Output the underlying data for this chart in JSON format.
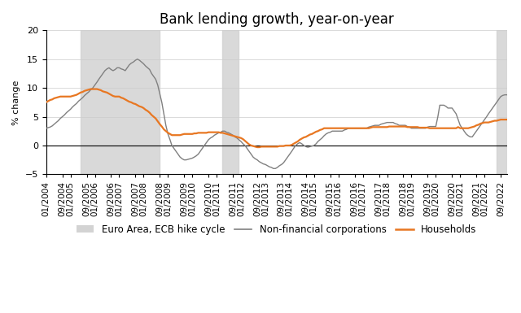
{
  "title": "Bank lending growth, year-on-year",
  "ylabel": "% change",
  "ylim": [
    -5,
    20
  ],
  "yticks": [
    -5,
    0,
    5,
    10,
    15,
    20
  ],
  "shaded_regions": [
    {
      "start": "2005-06-01",
      "end": "2008-09-01"
    },
    {
      "start": "2011-04-01",
      "end": "2011-12-01"
    },
    {
      "start": "2022-07-01",
      "end": "2022-12-01"
    }
  ],
  "nfc_color": "#808080",
  "hh_color": "#E87722",
  "shaded_color": "#d3d3d3",
  "background_color": "#ffffff",
  "title_fontsize": 12,
  "axis_fontsize": 7.5,
  "legend_fontsize": 8.5,
  "nfc_data": {
    "dates": [
      "2004-01-01",
      "2004-02-01",
      "2004-03-01",
      "2004-04-01",
      "2004-05-01",
      "2004-06-01",
      "2004-07-01",
      "2004-08-01",
      "2004-09-01",
      "2004-10-01",
      "2004-11-01",
      "2004-12-01",
      "2005-01-01",
      "2005-02-01",
      "2005-03-01",
      "2005-04-01",
      "2005-05-01",
      "2005-06-01",
      "2005-07-01",
      "2005-08-01",
      "2005-09-01",
      "2005-10-01",
      "2005-11-01",
      "2005-12-01",
      "2006-01-01",
      "2006-02-01",
      "2006-03-01",
      "2006-04-01",
      "2006-05-01",
      "2006-06-01",
      "2006-07-01",
      "2006-08-01",
      "2006-09-01",
      "2006-10-01",
      "2006-11-01",
      "2006-12-01",
      "2007-01-01",
      "2007-02-01",
      "2007-03-01",
      "2007-04-01",
      "2007-05-01",
      "2007-06-01",
      "2007-07-01",
      "2007-08-01",
      "2007-09-01",
      "2007-10-01",
      "2007-11-01",
      "2007-12-01",
      "2008-01-01",
      "2008-02-01",
      "2008-03-01",
      "2008-04-01",
      "2008-05-01",
      "2008-06-01",
      "2008-07-01",
      "2008-08-01",
      "2008-09-01",
      "2008-10-01",
      "2008-11-01",
      "2008-12-01",
      "2009-01-01",
      "2009-02-01",
      "2009-03-01",
      "2009-04-01",
      "2009-05-01",
      "2009-06-01",
      "2009-07-01",
      "2009-08-01",
      "2009-09-01",
      "2009-10-01",
      "2009-11-01",
      "2009-12-01",
      "2010-01-01",
      "2010-02-01",
      "2010-03-01",
      "2010-04-01",
      "2010-05-01",
      "2010-06-01",
      "2010-07-01",
      "2010-08-01",
      "2010-09-01",
      "2010-10-01",
      "2010-11-01",
      "2010-12-01",
      "2011-01-01",
      "2011-02-01",
      "2011-03-01",
      "2011-04-01",
      "2011-05-01",
      "2011-06-01",
      "2011-07-01",
      "2011-08-01",
      "2011-09-01",
      "2011-10-01",
      "2011-11-01",
      "2011-12-01",
      "2012-01-01",
      "2012-02-01",
      "2012-03-01",
      "2012-04-01",
      "2012-05-01",
      "2012-06-01",
      "2012-07-01",
      "2012-08-01",
      "2012-09-01",
      "2012-10-01",
      "2012-11-01",
      "2012-12-01",
      "2013-01-01",
      "2013-02-01",
      "2013-03-01",
      "2013-04-01",
      "2013-05-01",
      "2013-06-01",
      "2013-07-01",
      "2013-08-01",
      "2013-09-01",
      "2013-10-01",
      "2013-11-01",
      "2013-12-01",
      "2014-01-01",
      "2014-02-01",
      "2014-03-01",
      "2014-04-01",
      "2014-05-01",
      "2014-06-01",
      "2014-07-01",
      "2014-08-01",
      "2014-09-01",
      "2014-10-01",
      "2014-11-01",
      "2014-12-01",
      "2015-01-01",
      "2015-02-01",
      "2015-03-01",
      "2015-04-01",
      "2015-05-01",
      "2015-06-01",
      "2015-07-01",
      "2015-08-01",
      "2015-09-01",
      "2015-10-01",
      "2015-11-01",
      "2015-12-01",
      "2016-01-01",
      "2016-02-01",
      "2016-03-01",
      "2016-04-01",
      "2016-05-01",
      "2016-06-01",
      "2016-07-01",
      "2016-08-01",
      "2016-09-01",
      "2016-10-01",
      "2016-11-01",
      "2016-12-01",
      "2017-01-01",
      "2017-02-01",
      "2017-03-01",
      "2017-04-01",
      "2017-05-01",
      "2017-06-01",
      "2017-07-01",
      "2017-08-01",
      "2017-09-01",
      "2017-10-01",
      "2017-11-01",
      "2017-12-01",
      "2018-01-01",
      "2018-02-01",
      "2018-03-01",
      "2018-04-01",
      "2018-05-01",
      "2018-06-01",
      "2018-07-01",
      "2018-08-01",
      "2018-09-01",
      "2018-10-01",
      "2018-11-01",
      "2018-12-01",
      "2019-01-01",
      "2019-02-01",
      "2019-03-01",
      "2019-04-01",
      "2019-05-01",
      "2019-06-01",
      "2019-07-01",
      "2019-08-01",
      "2019-09-01",
      "2019-10-01",
      "2019-11-01",
      "2019-12-01",
      "2020-01-01",
      "2020-02-01",
      "2020-03-01",
      "2020-04-01",
      "2020-05-01",
      "2020-06-01",
      "2020-07-01",
      "2020-08-01",
      "2020-09-01",
      "2020-10-01",
      "2020-11-01",
      "2020-12-01",
      "2021-01-01",
      "2021-02-01",
      "2021-03-01",
      "2021-04-01",
      "2021-05-01",
      "2021-06-01",
      "2021-07-01",
      "2021-08-01",
      "2021-09-01",
      "2021-10-01",
      "2021-11-01",
      "2021-12-01",
      "2022-01-01",
      "2022-02-01",
      "2022-03-01",
      "2022-04-01",
      "2022-05-01",
      "2022-06-01",
      "2022-07-01",
      "2022-08-01",
      "2022-09-01",
      "2022-10-01",
      "2022-11-01",
      "2022-12-01"
    ],
    "values": [
      3.0,
      3.1,
      3.2,
      3.4,
      3.7,
      4.0,
      4.3,
      4.7,
      5.0,
      5.3,
      5.7,
      6.0,
      6.3,
      6.7,
      7.0,
      7.3,
      7.7,
      8.0,
      8.3,
      8.7,
      9.0,
      9.3,
      9.7,
      10.0,
      10.5,
      11.0,
      11.5,
      12.0,
      12.5,
      13.0,
      13.3,
      13.5,
      13.2,
      13.0,
      13.2,
      13.5,
      13.5,
      13.3,
      13.2,
      13.0,
      13.5,
      14.0,
      14.3,
      14.5,
      14.8,
      15.0,
      14.8,
      14.5,
      14.2,
      13.8,
      13.5,
      13.2,
      12.5,
      12.0,
      11.5,
      10.5,
      9.0,
      7.5,
      5.5,
      3.5,
      2.0,
      1.0,
      0.0,
      -0.5,
      -1.0,
      -1.5,
      -2.0,
      -2.3,
      -2.5,
      -2.5,
      -2.4,
      -2.3,
      -2.2,
      -2.0,
      -1.8,
      -1.5,
      -1.0,
      -0.5,
      0.0,
      0.5,
      1.0,
      1.3,
      1.5,
      1.8,
      2.0,
      2.2,
      2.3,
      2.5,
      2.5,
      2.3,
      2.2,
      2.0,
      1.8,
      1.5,
      1.3,
      1.0,
      0.7,
      0.3,
      0.0,
      -0.5,
      -1.0,
      -1.5,
      -2.0,
      -2.3,
      -2.5,
      -2.8,
      -3.0,
      -3.2,
      -3.3,
      -3.5,
      -3.7,
      -3.8,
      -4.0,
      -4.0,
      -3.8,
      -3.5,
      -3.3,
      -3.0,
      -2.5,
      -2.0,
      -1.5,
      -1.0,
      -0.5,
      0.0,
      0.3,
      0.5,
      0.3,
      0.0,
      -0.2,
      -0.3,
      -0.2,
      -0.1,
      0.0,
      0.3,
      0.7,
      1.0,
      1.3,
      1.7,
      2.0,
      2.2,
      2.3,
      2.5,
      2.5,
      2.5,
      2.5,
      2.5,
      2.5,
      2.7,
      2.8,
      3.0,
      3.0,
      3.0,
      3.0,
      3.0,
      3.0,
      3.0,
      3.0,
      3.0,
      3.0,
      3.2,
      3.3,
      3.4,
      3.5,
      3.5,
      3.5,
      3.7,
      3.8,
      3.9,
      4.0,
      4.0,
      4.0,
      4.0,
      3.8,
      3.7,
      3.5,
      3.5,
      3.5,
      3.5,
      3.3,
      3.2,
      3.0,
      3.0,
      3.0,
      3.0,
      3.0,
      3.0,
      3.0,
      3.0,
      3.2,
      3.3,
      3.3,
      3.3,
      3.3,
      5.0,
      7.0,
      7.0,
      7.0,
      6.8,
      6.5,
      6.5,
      6.5,
      6.0,
      5.5,
      4.5,
      3.5,
      3.0,
      2.5,
      2.0,
      1.7,
      1.5,
      1.5,
      2.0,
      2.5,
      3.0,
      3.5,
      4.0,
      4.5,
      5.0,
      5.5,
      6.0,
      6.5,
      7.0,
      7.5,
      8.0,
      8.5,
      8.7,
      8.8,
      8.8
    ]
  },
  "hh_data": {
    "dates": [
      "2004-01-01",
      "2004-02-01",
      "2004-03-01",
      "2004-04-01",
      "2004-05-01",
      "2004-06-01",
      "2004-07-01",
      "2004-08-01",
      "2004-09-01",
      "2004-10-01",
      "2004-11-01",
      "2004-12-01",
      "2005-01-01",
      "2005-02-01",
      "2005-03-01",
      "2005-04-01",
      "2005-05-01",
      "2005-06-01",
      "2005-07-01",
      "2005-08-01",
      "2005-09-01",
      "2005-10-01",
      "2005-11-01",
      "2005-12-01",
      "2006-01-01",
      "2006-02-01",
      "2006-03-01",
      "2006-04-01",
      "2006-05-01",
      "2006-06-01",
      "2006-07-01",
      "2006-08-01",
      "2006-09-01",
      "2006-10-01",
      "2006-11-01",
      "2006-12-01",
      "2007-01-01",
      "2007-02-01",
      "2007-03-01",
      "2007-04-01",
      "2007-05-01",
      "2007-06-01",
      "2007-07-01",
      "2007-08-01",
      "2007-09-01",
      "2007-10-01",
      "2007-11-01",
      "2007-12-01",
      "2008-01-01",
      "2008-02-01",
      "2008-03-01",
      "2008-04-01",
      "2008-05-01",
      "2008-06-01",
      "2008-07-01",
      "2008-08-01",
      "2008-09-01",
      "2008-10-01",
      "2008-11-01",
      "2008-12-01",
      "2009-01-01",
      "2009-02-01",
      "2009-03-01",
      "2009-04-01",
      "2009-05-01",
      "2009-06-01",
      "2009-07-01",
      "2009-08-01",
      "2009-09-01",
      "2009-10-01",
      "2009-11-01",
      "2009-12-01",
      "2010-01-01",
      "2010-02-01",
      "2010-03-01",
      "2010-04-01",
      "2010-05-01",
      "2010-06-01",
      "2010-07-01",
      "2010-08-01",
      "2010-09-01",
      "2010-10-01",
      "2010-11-01",
      "2010-12-01",
      "2011-01-01",
      "2011-02-01",
      "2011-03-01",
      "2011-04-01",
      "2011-05-01",
      "2011-06-01",
      "2011-07-01",
      "2011-08-01",
      "2011-09-01",
      "2011-10-01",
      "2011-11-01",
      "2011-12-01",
      "2012-01-01",
      "2012-02-01",
      "2012-03-01",
      "2012-04-01",
      "2012-05-01",
      "2012-06-01",
      "2012-07-01",
      "2012-08-01",
      "2012-09-01",
      "2012-10-01",
      "2012-11-01",
      "2012-12-01",
      "2013-01-01",
      "2013-02-01",
      "2013-03-01",
      "2013-04-01",
      "2013-05-01",
      "2013-06-01",
      "2013-07-01",
      "2013-08-01",
      "2013-09-01",
      "2013-10-01",
      "2013-11-01",
      "2013-12-01",
      "2014-01-01",
      "2014-02-01",
      "2014-03-01",
      "2014-04-01",
      "2014-05-01",
      "2014-06-01",
      "2014-07-01",
      "2014-08-01",
      "2014-09-01",
      "2014-10-01",
      "2014-11-01",
      "2014-12-01",
      "2015-01-01",
      "2015-02-01",
      "2015-03-01",
      "2015-04-01",
      "2015-05-01",
      "2015-06-01",
      "2015-07-01",
      "2015-08-01",
      "2015-09-01",
      "2015-10-01",
      "2015-11-01",
      "2015-12-01",
      "2016-01-01",
      "2016-02-01",
      "2016-03-01",
      "2016-04-01",
      "2016-05-01",
      "2016-06-01",
      "2016-07-01",
      "2016-08-01",
      "2016-09-01",
      "2016-10-01",
      "2016-11-01",
      "2016-12-01",
      "2017-01-01",
      "2017-02-01",
      "2017-03-01",
      "2017-04-01",
      "2017-05-01",
      "2017-06-01",
      "2017-07-01",
      "2017-08-01",
      "2017-09-01",
      "2017-10-01",
      "2017-11-01",
      "2017-12-01",
      "2018-01-01",
      "2018-02-01",
      "2018-03-01",
      "2018-04-01",
      "2018-05-01",
      "2018-06-01",
      "2018-07-01",
      "2018-08-01",
      "2018-09-01",
      "2018-10-01",
      "2018-11-01",
      "2018-12-01",
      "2019-01-01",
      "2019-02-01",
      "2019-03-01",
      "2019-04-01",
      "2019-05-01",
      "2019-06-01",
      "2019-07-01",
      "2019-08-01",
      "2019-09-01",
      "2019-10-01",
      "2019-11-01",
      "2019-12-01",
      "2020-01-01",
      "2020-02-01",
      "2020-03-01",
      "2020-04-01",
      "2020-05-01",
      "2020-06-01",
      "2020-07-01",
      "2020-08-01",
      "2020-09-01",
      "2020-10-01",
      "2020-11-01",
      "2020-12-01",
      "2021-01-01",
      "2021-02-01",
      "2021-03-01",
      "2021-04-01",
      "2021-05-01",
      "2021-06-01",
      "2021-07-01",
      "2021-08-01",
      "2021-09-01",
      "2021-10-01",
      "2021-11-01",
      "2021-12-01",
      "2022-01-01",
      "2022-02-01",
      "2022-03-01",
      "2022-04-01",
      "2022-05-01",
      "2022-06-01",
      "2022-07-01",
      "2022-08-01",
      "2022-09-01",
      "2022-10-01",
      "2022-11-01",
      "2022-12-01"
    ],
    "values": [
      7.5,
      7.7,
      7.9,
      8.0,
      8.2,
      8.3,
      8.4,
      8.5,
      8.5,
      8.5,
      8.5,
      8.5,
      8.5,
      8.6,
      8.7,
      8.8,
      9.0,
      9.2,
      9.3,
      9.5,
      9.6,
      9.7,
      9.8,
      9.8,
      9.8,
      9.8,
      9.7,
      9.6,
      9.4,
      9.3,
      9.2,
      9.0,
      8.8,
      8.6,
      8.5,
      8.5,
      8.5,
      8.3,
      8.2,
      8.0,
      7.8,
      7.6,
      7.5,
      7.3,
      7.2,
      7.0,
      6.8,
      6.7,
      6.5,
      6.2,
      6.0,
      5.7,
      5.3,
      5.0,
      4.7,
      4.2,
      3.7,
      3.3,
      2.8,
      2.5,
      2.2,
      2.0,
      1.8,
      1.8,
      1.8,
      1.8,
      1.8,
      1.9,
      2.0,
      2.0,
      2.0,
      2.0,
      2.0,
      2.1,
      2.1,
      2.2,
      2.2,
      2.2,
      2.2,
      2.2,
      2.3,
      2.3,
      2.3,
      2.3,
      2.3,
      2.3,
      2.2,
      2.2,
      2.1,
      2.0,
      1.9,
      1.8,
      1.7,
      1.6,
      1.5,
      1.4,
      1.3,
      1.1,
      0.8,
      0.5,
      0.2,
      0.0,
      -0.1,
      -0.2,
      -0.3,
      -0.3,
      -0.2,
      -0.2,
      -0.2,
      -0.2,
      -0.2,
      -0.2,
      -0.2,
      -0.2,
      -0.2,
      -0.1,
      -0.1,
      -0.1,
      0.0,
      0.0,
      0.0,
      0.1,
      0.3,
      0.5,
      0.7,
      1.0,
      1.2,
      1.4,
      1.5,
      1.7,
      1.9,
      2.0,
      2.2,
      2.4,
      2.5,
      2.7,
      2.8,
      3.0,
      3.0,
      3.0,
      3.0,
      3.0,
      3.0,
      3.0,
      3.0,
      3.0,
      3.0,
      3.0,
      3.0,
      3.0,
      3.0,
      3.0,
      3.0,
      3.0,
      3.0,
      3.0,
      3.0,
      3.0,
      3.0,
      3.0,
      3.1,
      3.2,
      3.2,
      3.2,
      3.2,
      3.2,
      3.2,
      3.2,
      3.2,
      3.3,
      3.3,
      3.3,
      3.3,
      3.3,
      3.3,
      3.3,
      3.3,
      3.3,
      3.2,
      3.2,
      3.2,
      3.2,
      3.2,
      3.2,
      3.1,
      3.1,
      3.1,
      3.1,
      3.1,
      3.0,
      3.0,
      3.0,
      3.0,
      3.0,
      3.0,
      3.0,
      3.0,
      3.0,
      3.0,
      3.0,
      3.0,
      3.0,
      3.0,
      3.2,
      3.0,
      3.0,
      3.0,
      3.0,
      3.0,
      3.1,
      3.2,
      3.3,
      3.5,
      3.6,
      3.8,
      3.9,
      4.0,
      4.0,
      4.0,
      4.1,
      4.2,
      4.3,
      4.3,
      4.4,
      4.5,
      4.5,
      4.5,
      4.5
    ]
  },
  "x_tick_months": [
    1,
    9
  ],
  "x_start": "2004-01-01",
  "x_end": "2022-12-01"
}
